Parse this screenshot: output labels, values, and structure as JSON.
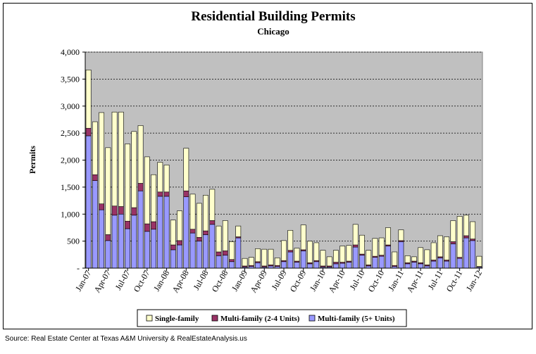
{
  "chart_data": {
    "type": "bar",
    "stacked": true,
    "title": "Residential Building Permits",
    "subtitle": "Chicago",
    "ylabel": "Permits",
    "xlabel": "",
    "ylim": [
      0,
      4000
    ],
    "yticks": [
      0,
      500,
      1000,
      1500,
      2000,
      2500,
      3000,
      3500,
      4000
    ],
    "ytick_labels": [
      "-",
      "500",
      "1,000",
      "1,500",
      "2,000",
      "2,500",
      "3,000",
      "3,500",
      "4,000"
    ],
    "x_tick_labels": [
      "Jan-07",
      "Apr-07",
      "Jul-07",
      "Oct-07",
      "Jan-08",
      "Apr-08",
      "Jul-08",
      "Oct-08",
      "Jan-09",
      "Apr-09",
      "Jul-09",
      "Oct-09",
      "Jan-10",
      "Apr-10",
      "Jul-10",
      "Oct-10",
      "Jan-11",
      "Apr-11",
      "Jul-11",
      "Oct-11",
      "Jan-12"
    ],
    "grid": true,
    "plot_background": "#c0c0c0",
    "legend_position": "bottom",
    "categories": [
      "Jan-07",
      "Feb-07",
      "Mar-07",
      "Apr-07",
      "May-07",
      "Jun-07",
      "Jul-07",
      "Aug-07",
      "Sep-07",
      "Oct-07",
      "Nov-07",
      "Dec-07",
      "Jan-08",
      "Feb-08",
      "Mar-08",
      "Apr-08",
      "May-08",
      "Jun-08",
      "Jul-08",
      "Aug-08",
      "Sep-08",
      "Oct-08",
      "Nov-08",
      "Dec-08",
      "Jan-09",
      "Feb-09",
      "Mar-09",
      "Apr-09",
      "May-09",
      "Jun-09",
      "Jul-09",
      "Aug-09",
      "Sep-09",
      "Oct-09",
      "Nov-09",
      "Dec-09",
      "Jan-10",
      "Feb-10",
      "Mar-10",
      "Apr-10",
      "May-10",
      "Jun-10",
      "Jul-10",
      "Aug-10",
      "Sep-10",
      "Oct-10",
      "Nov-10",
      "Dec-10",
      "Jan-11",
      "Feb-11",
      "Mar-11",
      "Apr-11",
      "May-11",
      "Jun-11",
      "Jul-11",
      "Aug-11",
      "Sep-11",
      "Oct-11",
      "Nov-11",
      "Dec-11",
      "Jan-12"
    ],
    "series": [
      {
        "name": "Multi-family (5+ Units)",
        "color": "#9999ff",
        "values": [
          2450,
          1620,
          1080,
          510,
          980,
          1000,
          730,
          980,
          1430,
          680,
          720,
          1330,
          1330,
          340,
          430,
          1320,
          650,
          500,
          620,
          810,
          230,
          240,
          120,
          560,
          20,
          30,
          100,
          20,
          40,
          30,
          120,
          300,
          110,
          320,
          80,
          120,
          20,
          20,
          80,
          90,
          110,
          390,
          240,
          40,
          200,
          220,
          410,
          30,
          490,
          80,
          110,
          80,
          40,
          130,
          190,
          130,
          450,
          180,
          560,
          510,
          20
        ]
      },
      {
        "name": "Multi-family (2-4 Units)",
        "color": "#993366",
        "values": [
          140,
          110,
          110,
          110,
          170,
          140,
          140,
          140,
          140,
          140,
          140,
          80,
          80,
          90,
          80,
          110,
          70,
          70,
          70,
          70,
          70,
          80,
          40,
          20,
          20,
          20,
          20,
          20,
          20,
          20,
          20,
          30,
          20,
          20,
          20,
          20,
          20,
          20,
          30,
          20,
          20,
          40,
          20,
          20,
          20,
          20,
          20,
          20,
          20,
          20,
          20,
          20,
          20,
          20,
          20,
          20,
          40,
          20,
          40,
          30,
          10
        ]
      },
      {
        "name": "Single-family",
        "color": "#ffffcc",
        "values": [
          1080,
          980,
          1690,
          1610,
          1740,
          1750,
          1430,
          1410,
          1070,
          1240,
          870,
          550,
          500,
          460,
          550,
          790,
          650,
          630,
          660,
          580,
          480,
          560,
          330,
          200,
          140,
          150,
          240,
          310,
          290,
          140,
          370,
          370,
          240,
          460,
          400,
          330,
          290,
          170,
          220,
          300,
          290,
          380,
          350,
          270,
          330,
          320,
          320,
          250,
          200,
          130,
          80,
          280,
          280,
          320,
          390,
          430,
          390,
          760,
          380,
          320,
          190
        ]
      }
    ]
  },
  "legend": {
    "items": [
      {
        "label": "Single-family",
        "color": "#ffffcc"
      },
      {
        "label": "Multi-family (2-4 Units)",
        "color": "#993366"
      },
      {
        "label": "Multi-family (5+ Units)",
        "color": "#9999ff"
      }
    ]
  },
  "source": "Source: Real Estate Center at Texas A&M University & RealEstateAnalysis.us"
}
